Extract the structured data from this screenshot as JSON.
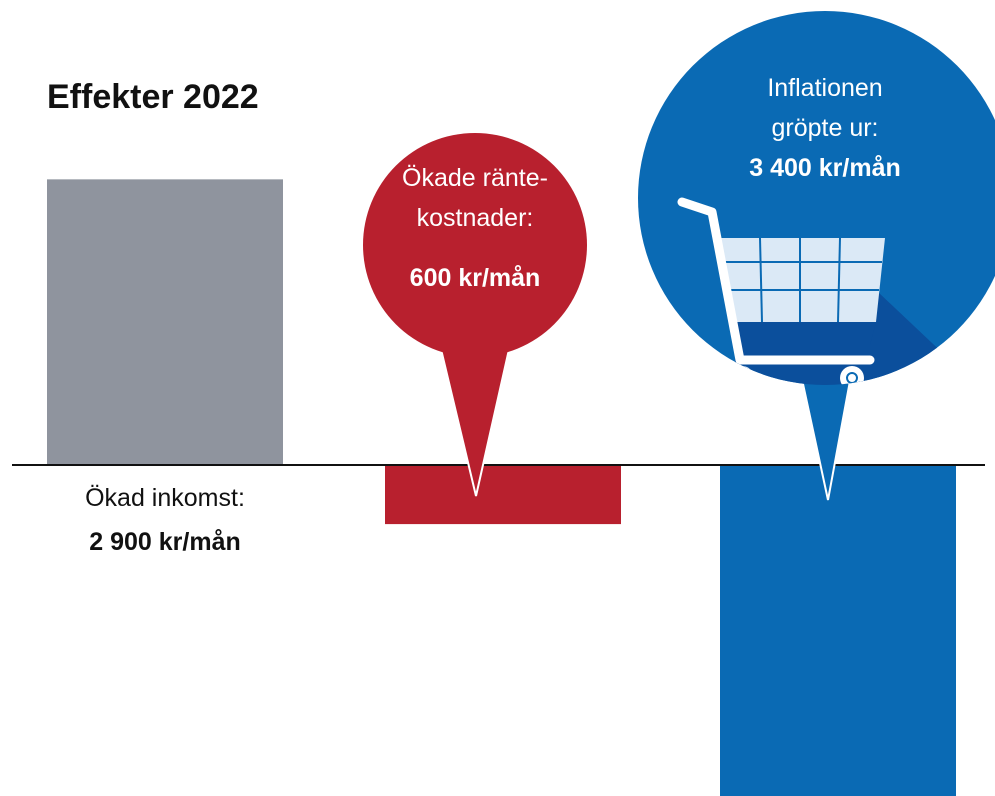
{
  "chart_data": {
    "type": "bar",
    "title": "Effekter 2022",
    "categories": [
      "Ökad inkomst:",
      "Ökade ränte-\nkostnader:",
      "Inflationen\ngröpte ur:"
    ],
    "values": [
      2900,
      -600,
      -3400
    ],
    "value_labels": [
      "2 900 kr/mån",
      "600 kr/mån",
      "3 400 kr/mån"
    ],
    "colors": [
      "#8f949e",
      "#b8202e",
      "#0a6ab4"
    ]
  }
}
